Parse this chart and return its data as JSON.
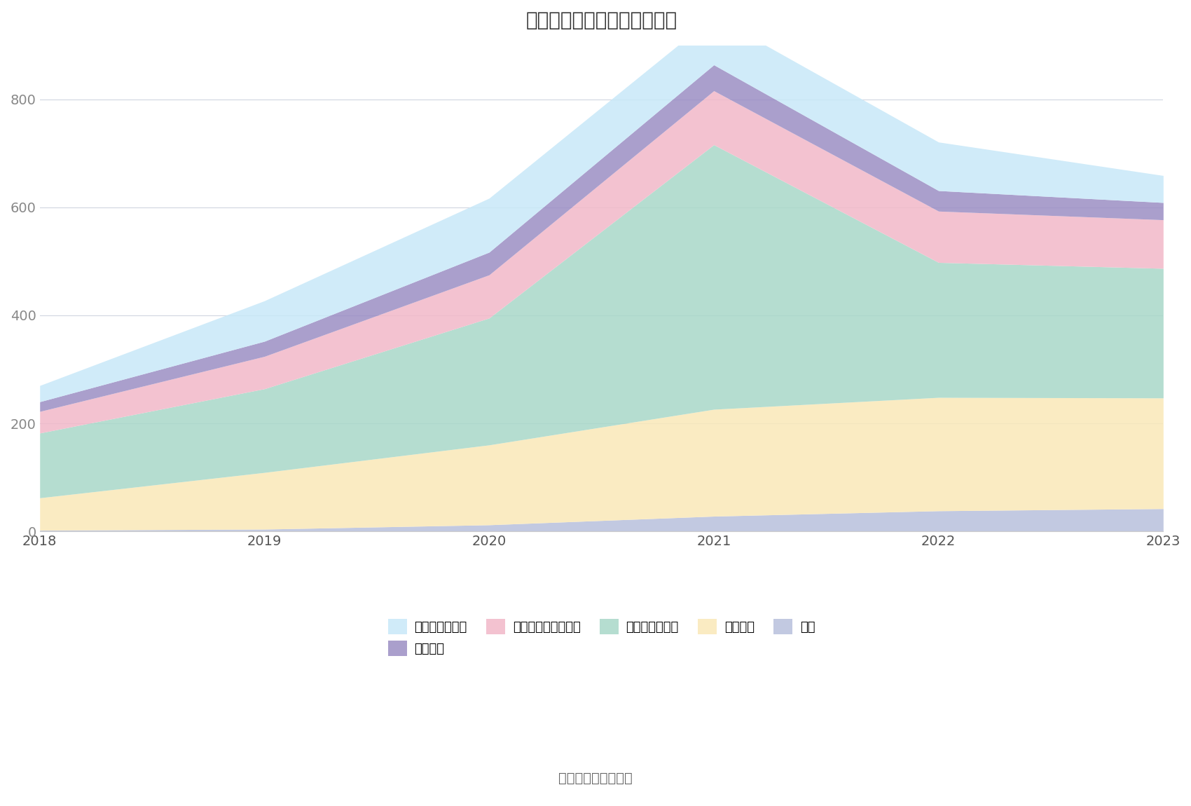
{
  "title": "历年主要负债堆积图（亿元）",
  "years": [
    2018,
    2019,
    2020,
    2021,
    2022,
    2023
  ],
  "series": {
    "其它": [
      2,
      4,
      12,
      28,
      38,
      42
    ],
    "应付债券": [
      60,
      105,
      148,
      198,
      210,
      205
    ],
    "代理买卖证券款": [
      120,
      155,
      235,
      490,
      250,
      240
    ],
    "卖出回购金融资产款": [
      40,
      60,
      80,
      100,
      95,
      90
    ],
    "拆入资金": [
      18,
      28,
      42,
      48,
      38,
      32
    ],
    "应付短期融资款": [
      30,
      75,
      100,
      90,
      90,
      50
    ]
  },
  "colors": {
    "其它": "#B8C0DC",
    "应付债券": "#FAE8B8",
    "代理买卖证券款": "#A8D8C8",
    "卖出回购金融资产款": "#F2B8C8",
    "拆入资金": "#9B8EC4",
    "应付短期融资款": "#C8E8F8"
  },
  "ylim": [
    0,
    900
  ],
  "yticks": [
    0,
    200,
    400,
    600,
    800
  ],
  "source": "数据来源：恒生聚源",
  "bg_color": "#FFFFFF",
  "grid_color": "#D0D5E0",
  "title_fontsize": 20,
  "label_fontsize": 14,
  "legend_fontsize": 13,
  "source_fontsize": 14,
  "legend_order": [
    "应付短期融资款",
    "拆入资金",
    "卖出回购金融资产款",
    "代理买卖证券款",
    "应付债券",
    "其它"
  ]
}
